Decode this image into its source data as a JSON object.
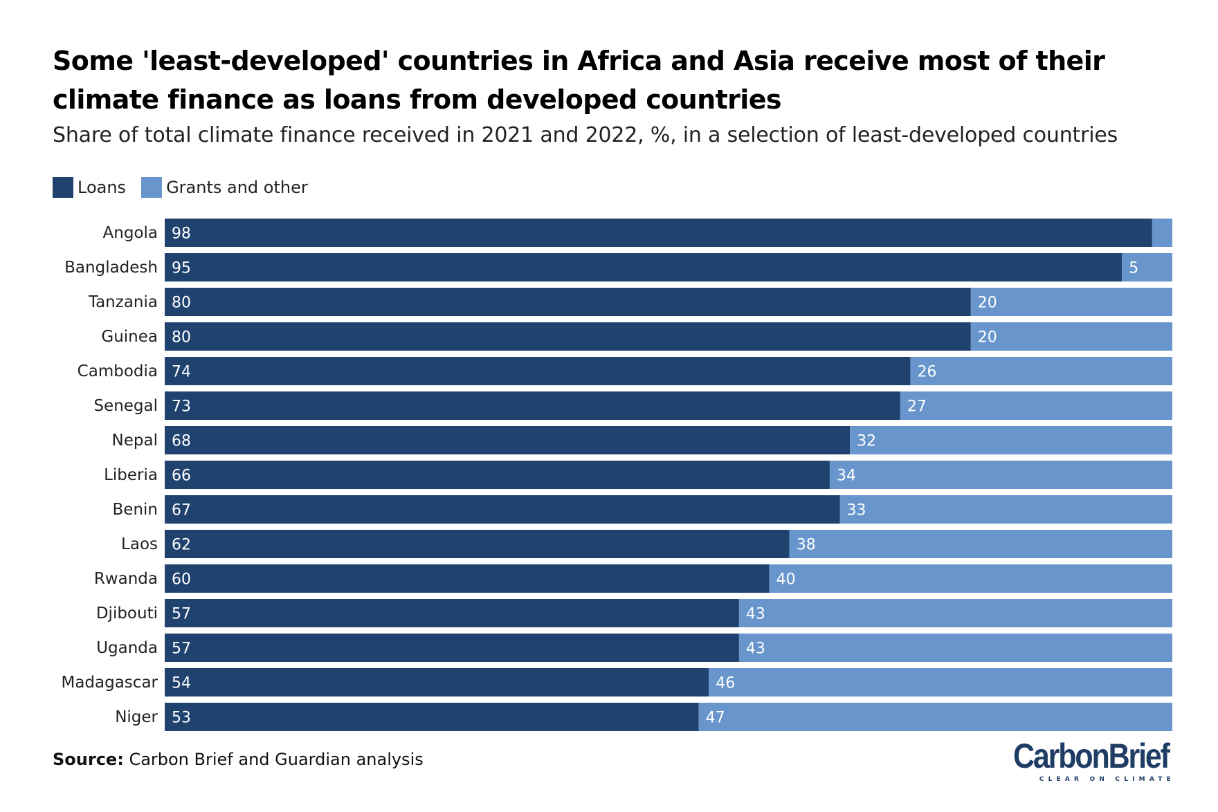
{
  "title": "Some 'least-developed' countries in Africa and Asia receive most of their climate finance as loans from developed countries",
  "subtitle": "Share of total climate finance received in 2021 and 2022, %, in a selection of least-developed countries",
  "source": {
    "label": "Source:",
    "text": "Carbon Brief and Guardian analysis"
  },
  "logo": {
    "name": "CarbonBrief",
    "tagline": "CLEAR ON CLIMATE"
  },
  "colors": {
    "loans": "#1f426f",
    "grants": "#6895cc",
    "label_text": "#ffffff"
  },
  "chart_data": {
    "type": "bar",
    "orientation": "horizontal",
    "stacked": true,
    "title": "Some 'least-developed' countries in Africa and Asia receive most of their climate finance as loans from developed countries",
    "subtitle": "Share of total climate finance received in 2021 and 2022, %, in a selection of least-developed countries",
    "xlim": [
      0,
      100
    ],
    "legend_position": "top-left",
    "categories": [
      "Angola",
      "Bangladesh",
      "Tanzania",
      "Guinea",
      "Cambodia",
      "Senegal",
      "Nepal",
      "Liberia",
      "Benin",
      "Laos",
      "Rwanda",
      "Djibouti",
      "Uganda",
      "Madagascar",
      "Niger"
    ],
    "series": [
      {
        "name": "Loans",
        "values": [
          98,
          95,
          80,
          80,
          74,
          73,
          68,
          66,
          67,
          62,
          60,
          57,
          57,
          54,
          53
        ],
        "labels": [
          "98",
          "95",
          "80",
          "80",
          "74",
          "73",
          "68",
          "66",
          "67",
          "62",
          "60",
          "57",
          "57",
          "54",
          "53"
        ]
      },
      {
        "name": "Grants and other",
        "values": [
          2,
          5,
          20,
          20,
          26,
          27,
          32,
          34,
          33,
          38,
          40,
          43,
          43,
          46,
          47
        ],
        "labels": [
          "",
          "5",
          "20",
          "20",
          "26",
          "27",
          "32",
          "34",
          "33",
          "38",
          "40",
          "43",
          "43",
          "46",
          "47"
        ]
      }
    ]
  }
}
